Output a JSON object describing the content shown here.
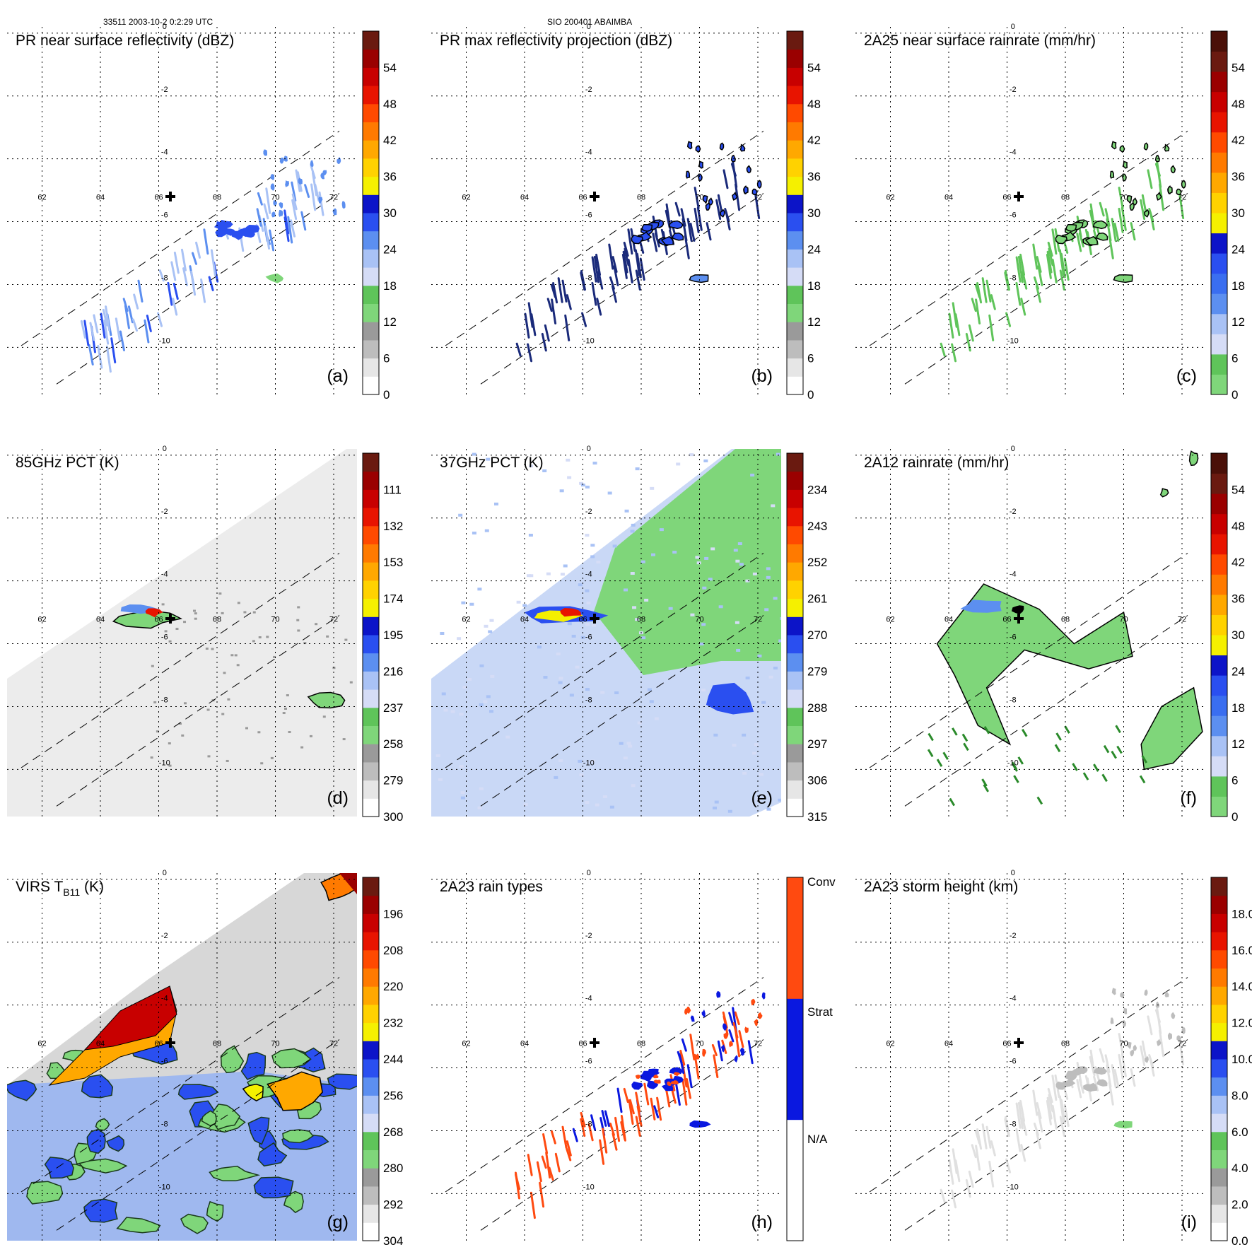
{
  "figure": {
    "header_left": "33511 2003-10-2 0:2:29 UTC",
    "header_center": "SIO 200401 ABAIMBA",
    "storm_center": {
      "lon": 66.4,
      "lat": -5.2
    },
    "lon_ticks": [
      "62",
      "64",
      "66",
      "68",
      "70",
      "72"
    ],
    "lat_ticks": [
      "0",
      "-2",
      "-4",
      "-6",
      "-8",
      "-10"
    ],
    "lon_range": [
      60.8,
      72.8
    ],
    "lat_range": [
      -11.5,
      0.2
    ]
  },
  "chart_data": [
    {
      "id": "a",
      "type": "heatmap",
      "title": "PR near surface reflectivity (dBZ)",
      "panel_label": "(a)",
      "field": "pr",
      "colorbar": {
        "ticks": [
          "0",
          "6",
          "12",
          "18",
          "24",
          "30",
          "36",
          "42",
          "48",
          "54"
        ],
        "colors": [
          "#ffffff",
          "#e6e6e6",
          "#bdbdbd",
          "#9a9a9a",
          "#7fd67a",
          "#5fc45a",
          "#d5dcf6",
          "#a9c2f5",
          "#5c8ff0",
          "#2a4ff0",
          "#0c14c8",
          "#f5f000",
          "#ffd200",
          "#ffa800",
          "#ff7a00",
          "#ff4a00",
          "#e81400",
          "#c80000",
          "#9a0000",
          "#6a1a10"
        ]
      }
    },
    {
      "id": "b",
      "type": "heatmap",
      "title": "PR max reflectivity projection (dBZ)",
      "panel_label": "(b)",
      "field": "pr-contour",
      "colorbar": {
        "ticks": [
          "0",
          "6",
          "12",
          "18",
          "24",
          "30",
          "36",
          "42",
          "48",
          "54"
        ],
        "colors": [
          "#ffffff",
          "#e6e6e6",
          "#bdbdbd",
          "#9a9a9a",
          "#7fd67a",
          "#5fc45a",
          "#d5dcf6",
          "#a9c2f5",
          "#5c8ff0",
          "#2a4ff0",
          "#0c14c8",
          "#f5f000",
          "#ffd200",
          "#ffa800",
          "#ff7a00",
          "#ff4a00",
          "#e81400",
          "#c80000",
          "#9a0000",
          "#6a1a10"
        ]
      }
    },
    {
      "id": "c",
      "type": "heatmap",
      "title": "2A25 near surface rainrate (mm/hr)",
      "panel_label": "(c)",
      "field": "pr-green",
      "colorbar": {
        "ticks": [
          "0",
          "6",
          "12",
          "18",
          "24",
          "30",
          "36",
          "42",
          "48",
          "54"
        ],
        "colors": [
          "#7fd67a",
          "#5fc45a",
          "#d5dcf6",
          "#a9c2f5",
          "#5c8ff0",
          "#3a6ef0",
          "#2a4ff0",
          "#0c14c8",
          "#f5f000",
          "#ffd200",
          "#ffa800",
          "#ff7a00",
          "#ff4a00",
          "#e81400",
          "#c80000",
          "#9a0000",
          "#6a1a10",
          "#4a1008"
        ]
      }
    },
    {
      "id": "d",
      "type": "heatmap",
      "title": "85GHz PCT (K)",
      "panel_label": "(d)",
      "field": "tmi85",
      "colorbar": {
        "ticks": [
          "300",
          "279",
          "258",
          "237",
          "216",
          "195",
          "174",
          "153",
          "132",
          "111"
        ],
        "colors": [
          "#ffffff",
          "#e6e6e6",
          "#bdbdbd",
          "#9a9a9a",
          "#7fd67a",
          "#5fc45a",
          "#d5dcf6",
          "#a9c2f5",
          "#5c8ff0",
          "#2a4ff0",
          "#0c14c8",
          "#f5f000",
          "#ffd200",
          "#ffa800",
          "#ff7a00",
          "#ff4a00",
          "#e81400",
          "#c80000",
          "#9a0000",
          "#6a1a10"
        ]
      }
    },
    {
      "id": "e",
      "type": "heatmap",
      "title": "37GHz PCT (K)",
      "panel_label": "(e)",
      "field": "tmi37",
      "colorbar": {
        "ticks": [
          "315",
          "306",
          "297",
          "288",
          "279",
          "270",
          "261",
          "252",
          "243",
          "234"
        ],
        "colors": [
          "#ffffff",
          "#e6e6e6",
          "#bdbdbd",
          "#9a9a9a",
          "#7fd67a",
          "#5fc45a",
          "#d5dcf6",
          "#a9c2f5",
          "#5c8ff0",
          "#2a4ff0",
          "#0c14c8",
          "#f5f000",
          "#ffd200",
          "#ffa800",
          "#ff7a00",
          "#ff4a00",
          "#e81400",
          "#c80000",
          "#9a0000",
          "#6a1a10"
        ]
      }
    },
    {
      "id": "f",
      "type": "heatmap",
      "title": "2A12 rainrate (mm/hr)",
      "panel_label": "(f)",
      "field": "rain12",
      "colorbar": {
        "ticks": [
          "0",
          "6",
          "12",
          "18",
          "24",
          "30",
          "36",
          "42",
          "48",
          "54"
        ],
        "colors": [
          "#7fd67a",
          "#5fc45a",
          "#d5dcf6",
          "#a9c2f5",
          "#5c8ff0",
          "#3a6ef0",
          "#2a4ff0",
          "#0c14c8",
          "#f5f000",
          "#ffd200",
          "#ffa800",
          "#ff7a00",
          "#ff4a00",
          "#e81400",
          "#c80000",
          "#9a0000",
          "#6a1a10",
          "#4a1008"
        ]
      }
    },
    {
      "id": "g",
      "type": "heatmap",
      "title": "VIRS T",
      "title_sub": "B11",
      "title_tail": " (K)",
      "panel_label": "(g)",
      "field": "virs",
      "colorbar": {
        "ticks": [
          "304",
          "292",
          "280",
          "268",
          "256",
          "244",
          "232",
          "220",
          "208",
          "196"
        ],
        "colors": [
          "#ffffff",
          "#e6e6e6",
          "#bdbdbd",
          "#9a9a9a",
          "#7fd67a",
          "#5fc45a",
          "#d5dcf6",
          "#a9c2f5",
          "#5c8ff0",
          "#2a4ff0",
          "#0c14c8",
          "#f5f000",
          "#ffd200",
          "#ffa800",
          "#ff7a00",
          "#ff4a00",
          "#e81400",
          "#c80000",
          "#9a0000",
          "#6a1a10"
        ]
      }
    },
    {
      "id": "h",
      "type": "heatmap",
      "title": "2A23 rain types",
      "panel_label": "(h)",
      "field": "types",
      "colorbar": {
        "categorical": true,
        "ticks": [
          "N/A",
          "Strat",
          "Conv"
        ],
        "colors": [
          "#ffffff",
          "#0a18e0",
          "#ff4a10"
        ]
      }
    },
    {
      "id": "i",
      "type": "heatmap",
      "title": "2A23 storm height (km)",
      "panel_label": "(i)",
      "field": "height",
      "colorbar": {
        "ticks": [
          "0.0",
          "2.0",
          "4.0",
          "6.0",
          "8.0",
          "10.0",
          "12.0",
          "14.0",
          "16.0",
          "18.0"
        ],
        "colors": [
          "#ffffff",
          "#e6e6e6",
          "#bdbdbd",
          "#9a9a9a",
          "#7fd67a",
          "#5fc45a",
          "#d5dcf6",
          "#a9c2f5",
          "#5c8ff0",
          "#2a4ff0",
          "#0c14c8",
          "#f5f000",
          "#ffd200",
          "#ffa800",
          "#ff7a00",
          "#ff4a00",
          "#e81400",
          "#c80000",
          "#9a0000",
          "#6a1a10"
        ]
      }
    }
  ]
}
